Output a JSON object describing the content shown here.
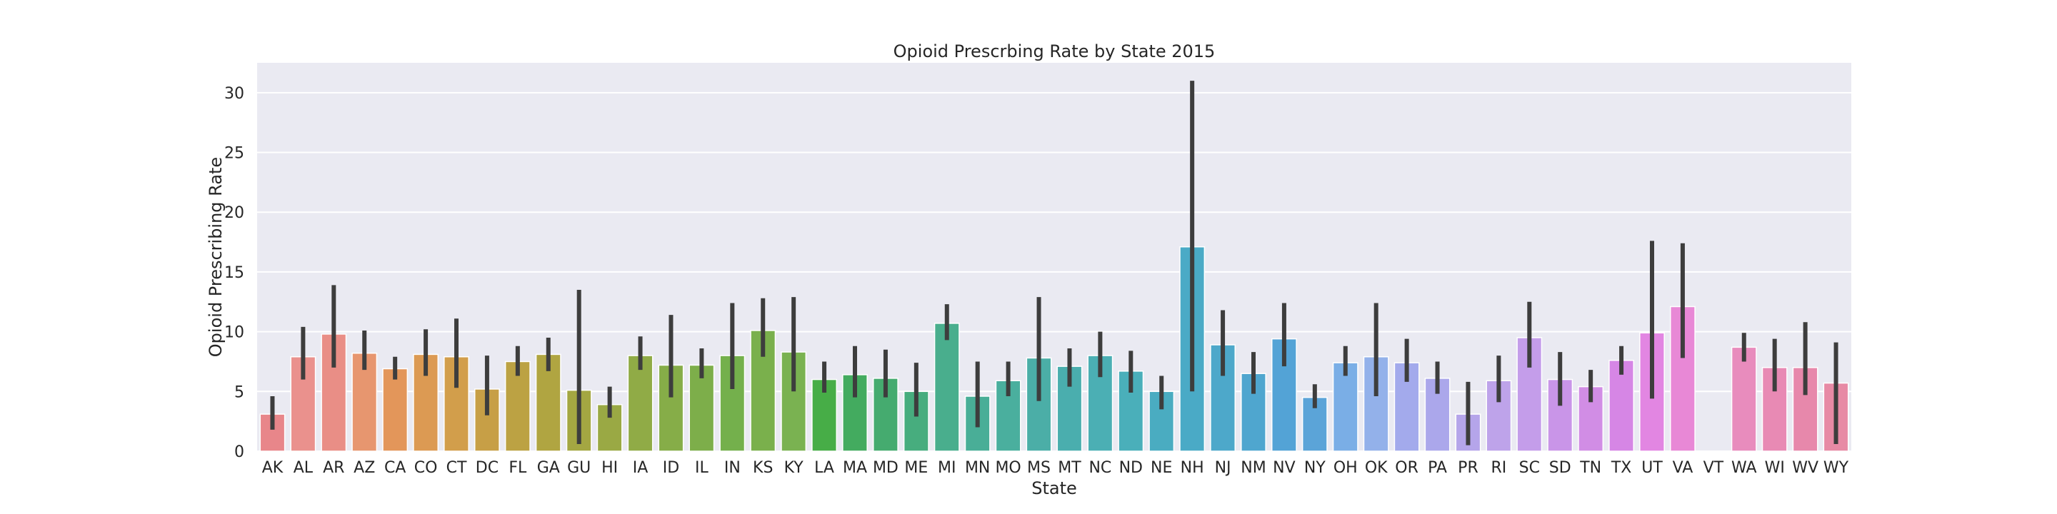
{
  "chart_data": {
    "type": "bar",
    "title": "Opioid Prescrbing Rate by State 2015",
    "xlabel": "State",
    "ylabel": "Opioid Prescribing Rate",
    "ylim": [
      0,
      32.5
    ],
    "yticks": [
      0,
      5,
      10,
      15,
      20,
      25,
      30
    ],
    "grid": true,
    "categories": [
      "AK",
      "AL",
      "AR",
      "AZ",
      "CA",
      "CO",
      "CT",
      "DC",
      "FL",
      "GA",
      "GU",
      "HI",
      "IA",
      "ID",
      "IL",
      "IN",
      "KS",
      "KY",
      "LA",
      "MA",
      "MD",
      "ME",
      "MI",
      "MN",
      "MO",
      "MS",
      "MT",
      "NC",
      "ND",
      "NE",
      "NH",
      "NJ",
      "NM",
      "NV",
      "NY",
      "OH",
      "OK",
      "OR",
      "PA",
      "PR",
      "RI",
      "SC",
      "SD",
      "TN",
      "TX",
      "UT",
      "VA",
      "VT",
      "WA",
      "WI",
      "WV",
      "WY"
    ],
    "values": [
      3.1,
      7.9,
      9.8,
      8.2,
      6.9,
      8.1,
      7.9,
      5.2,
      7.5,
      8.1,
      5.1,
      3.9,
      8.0,
      7.2,
      7.2,
      8.0,
      10.1,
      8.3,
      6.0,
      6.4,
      6.1,
      5.0,
      10.7,
      4.6,
      5.9,
      7.8,
      7.1,
      8.0,
      6.7,
      5.0,
      17.1,
      8.9,
      6.5,
      9.4,
      4.5,
      7.4,
      7.9,
      7.4,
      6.1,
      3.1,
      5.9,
      9.5,
      6.0,
      5.4,
      7.6,
      9.9,
      12.1,
      0.0,
      8.7,
      7.0,
      7.0,
      5.7
    ],
    "error_low": [
      1.8,
      6.0,
      7.0,
      6.8,
      6.0,
      6.3,
      5.3,
      3.0,
      6.3,
      6.7,
      0.6,
      2.8,
      6.8,
      4.5,
      6.1,
      5.2,
      7.9,
      5.0,
      4.9,
      4.5,
      4.5,
      2.9,
      9.3,
      2.0,
      4.6,
      4.2,
      5.4,
      6.2,
      4.9,
      3.5,
      5.0,
      6.3,
      4.8,
      7.1,
      3.6,
      6.3,
      4.6,
      5.8,
      4.8,
      0.5,
      4.1,
      7.0,
      3.8,
      4.1,
      6.4,
      4.4,
      7.8,
      0.0,
      7.5,
      5.0,
      4.7,
      0.6
    ],
    "error_high": [
      4.6,
      10.4,
      13.9,
      10.1,
      7.9,
      10.2,
      11.1,
      8.0,
      8.8,
      9.5,
      13.5,
      5.4,
      9.6,
      11.4,
      8.6,
      12.4,
      12.8,
      12.9,
      7.5,
      8.8,
      8.5,
      7.4,
      12.3,
      7.5,
      7.5,
      12.9,
      8.6,
      10.0,
      8.4,
      6.3,
      31.0,
      11.8,
      8.3,
      12.4,
      5.6,
      8.8,
      12.4,
      9.4,
      7.5,
      5.8,
      8.0,
      12.5,
      8.3,
      6.8,
      8.8,
      17.6,
      17.4,
      0.0,
      9.9,
      9.4,
      10.8,
      9.1
    ],
    "colors": [
      "#e8868a",
      "#ea918d",
      "#e98e86",
      "#e7966f",
      "#e3965a",
      "#dc9a53",
      "#d29e4b",
      "#c79f46",
      "#bca243",
      "#b0a541",
      "#a4a742",
      "#9aa944",
      "#90ab46",
      "#86ad48",
      "#7dae4a",
      "#74b04c",
      "#7ab04c",
      "#7ab251",
      "#47ad47",
      "#43ab5f",
      "#45ab6f",
      "#47ad7e",
      "#49ae8d",
      "#49ae97",
      "#4aaf9e",
      "#4baea7",
      "#4aaeae",
      "#4bafb4",
      "#4aafba",
      "#4aacc1",
      "#4aaac6",
      "#4da8ca",
      "#4fa6cf",
      "#53a3d6",
      "#5ba4d8",
      "#7aaee6",
      "#93b1ea",
      "#a3aaec",
      "#aba7eb",
      "#b5a5ea",
      "#bea3ea",
      "#c49dea",
      "#c995e8",
      "#d18de5",
      "#d686e5",
      "#e286e2",
      "#e888d6",
      "#e787c8",
      "#e88cbd",
      "#e88ab4",
      "#e788ab",
      "#e78aa5"
    ]
  }
}
